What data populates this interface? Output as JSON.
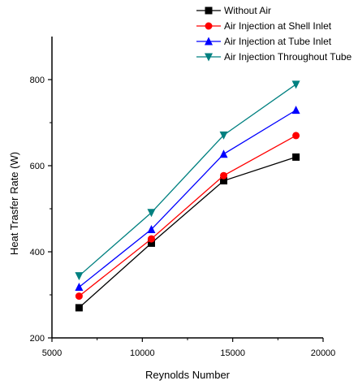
{
  "chart_data": {
    "type": "line",
    "title": "",
    "xlabel": "Reynolds Number",
    "ylabel": "Heat Trasfer Rate (W)",
    "xlim": [
      5000,
      20000
    ],
    "ylim": [
      200,
      900
    ],
    "x_ticks": [
      "5000",
      "10000",
      "15000",
      "20000"
    ],
    "y_ticks": [
      "200",
      "400",
      "600",
      "800"
    ],
    "legend_position": "top-right",
    "grid": false,
    "x": [
      6500,
      10500,
      14500,
      18500
    ],
    "series": [
      {
        "name": "Without Air",
        "values": [
          270,
          420,
          565,
          620
        ],
        "color": "#000000",
        "marker": "square"
      },
      {
        "name": "Air Injection at Shell Inlet",
        "values": [
          297,
          430,
          577,
          670
        ],
        "color": "#ff0000",
        "marker": "circle"
      },
      {
        "name": "Air Injection at Tube Inlet",
        "values": [
          318,
          452,
          627,
          729
        ],
        "color": "#0000ff",
        "marker": "triangle-up"
      },
      {
        "name": "Air Injection Throughout Tube",
        "values": [
          344,
          491,
          671,
          789
        ],
        "color": "#008080",
        "marker": "triangle-down"
      }
    ]
  }
}
